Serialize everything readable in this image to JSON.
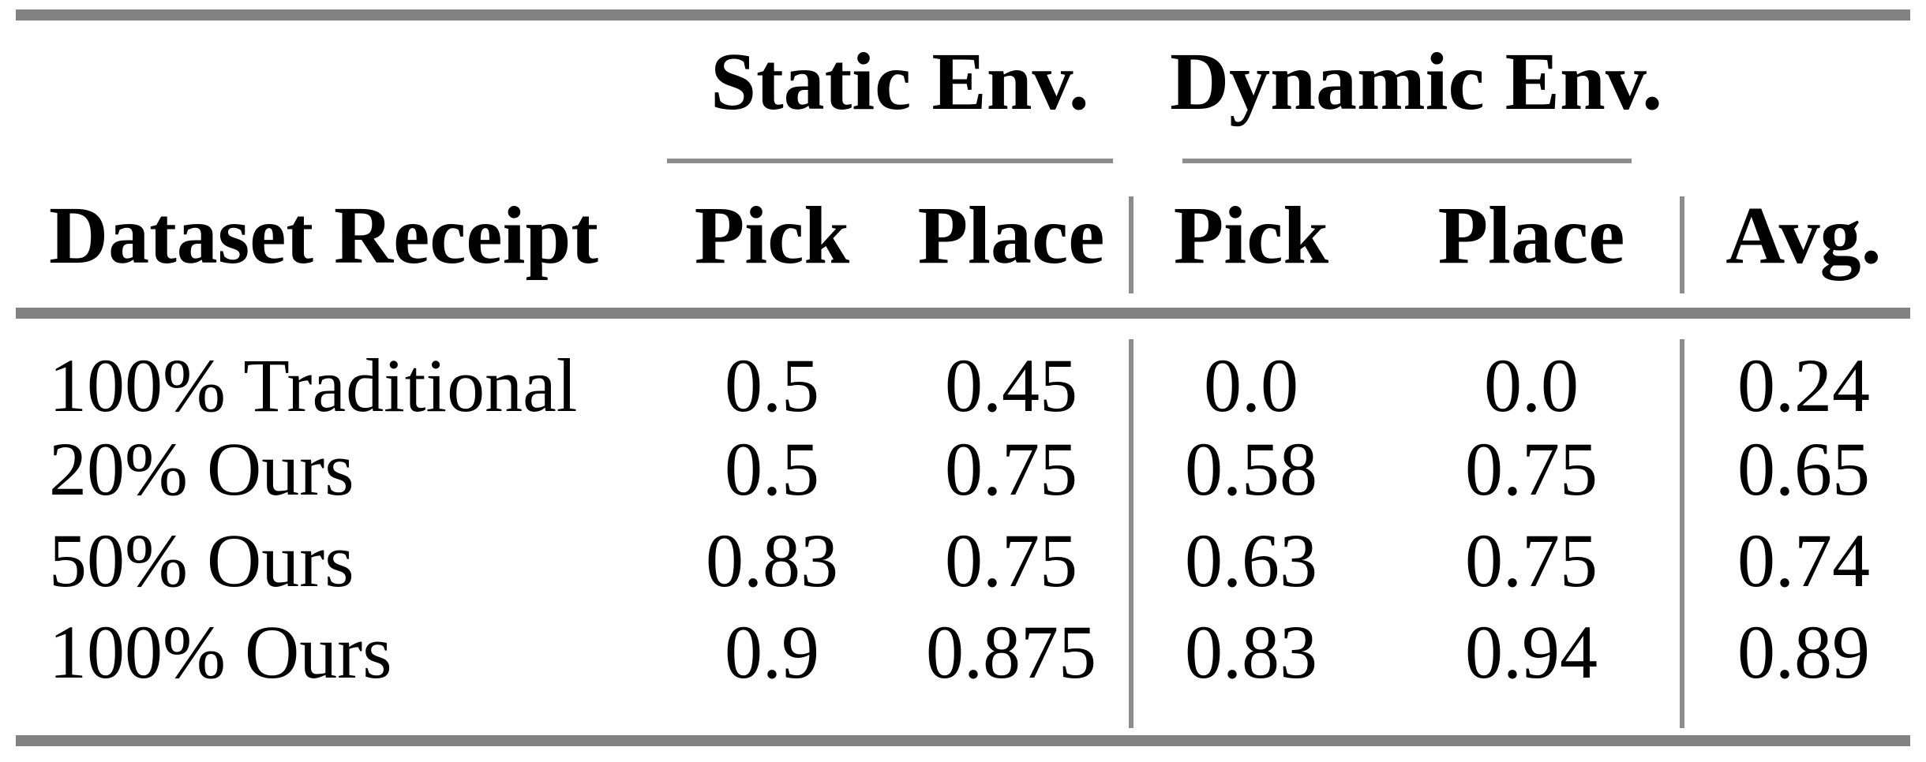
{
  "table": {
    "group_headers": {
      "static": "Static Env.",
      "dynamic": "Dynamic Env."
    },
    "columns": {
      "dataset": "Dataset Receipt",
      "static_pick": "Pick",
      "static_place": "Place",
      "dynamic_pick": "Pick",
      "dynamic_place": "Place",
      "avg": "Avg."
    },
    "rows": [
      {
        "dataset": "100% Traditional",
        "static_pick": "0.5",
        "static_place": "0.45",
        "dynamic_pick": "0.0",
        "dynamic_place": "0.0",
        "avg": "0.24"
      },
      {
        "dataset": "20% Ours",
        "static_pick": "0.5",
        "static_place": "0.75",
        "dynamic_pick": "0.58",
        "dynamic_place": "0.75",
        "avg": "0.65"
      },
      {
        "dataset": "50% Ours",
        "static_pick": "0.83",
        "static_place": "0.75",
        "dynamic_pick": "0.63",
        "dynamic_place": "0.75",
        "avg": "0.74"
      },
      {
        "dataset": "100% Ours",
        "static_pick": "0.9",
        "static_place": "0.875",
        "dynamic_pick": "0.83",
        "dynamic_place": "0.94",
        "avg": "0.89"
      }
    ],
    "colors": {
      "rule_gray": "#828282",
      "text": "#000000",
      "background": "#ffffff"
    }
  }
}
